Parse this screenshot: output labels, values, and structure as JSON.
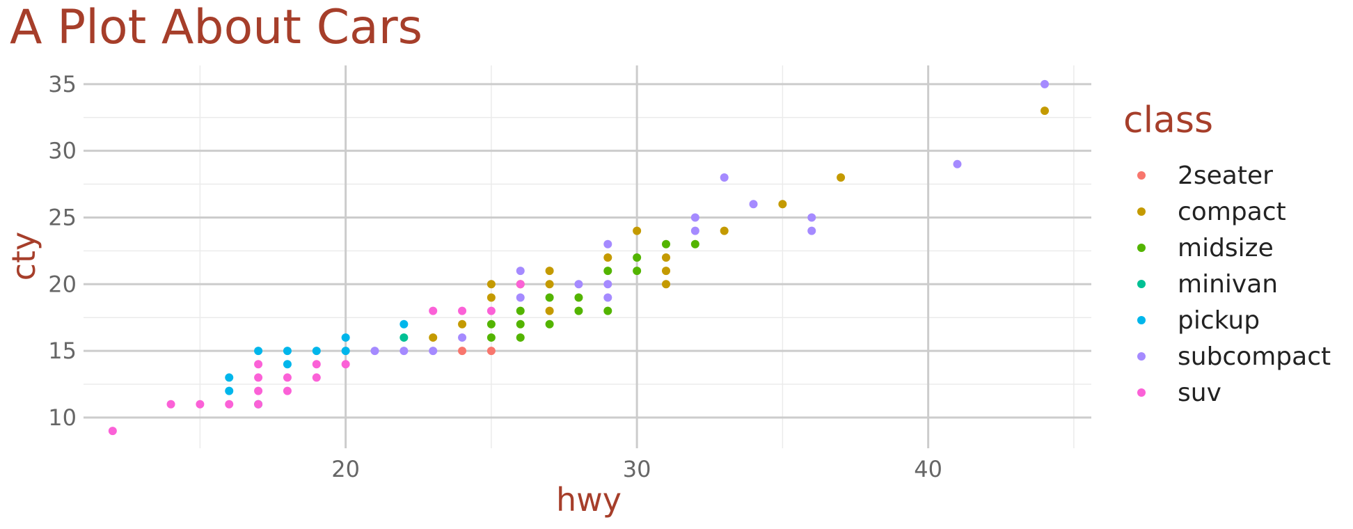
{
  "chart_data": {
    "type": "scatter",
    "title": "A Plot About Cars",
    "xlabel": "hwy",
    "ylabel": "cty",
    "xlim": [
      11.0,
      45.6
    ],
    "ylim": [
      7.7,
      36.4
    ],
    "xticks": [
      20,
      30,
      40
    ],
    "yticks": [
      10,
      15,
      20,
      25,
      30,
      35
    ],
    "grid": true,
    "legend": {
      "title": "class",
      "position": "right"
    },
    "series": [
      {
        "name": "2seater",
        "color": "#F8766D",
        "points": [
          [
            24,
            15
          ],
          [
            25,
            15
          ]
        ]
      },
      {
        "name": "compact",
        "color": "#C49A00",
        "points": [
          [
            23,
            16
          ],
          [
            24,
            17
          ],
          [
            25,
            19
          ],
          [
            25,
            20
          ],
          [
            26,
            20
          ],
          [
            27,
            18
          ],
          [
            27,
            20
          ],
          [
            27,
            21
          ],
          [
            29,
            22
          ],
          [
            30,
            24
          ],
          [
            31,
            20
          ],
          [
            31,
            21
          ],
          [
            31,
            22
          ],
          [
            33,
            24
          ],
          [
            35,
            26
          ],
          [
            37,
            28
          ],
          [
            44,
            33
          ]
        ]
      },
      {
        "name": "midsize",
        "color": "#53B400",
        "points": [
          [
            25,
            16
          ],
          [
            25,
            17
          ],
          [
            26,
            16
          ],
          [
            26,
            17
          ],
          [
            26,
            18
          ],
          [
            27,
            17
          ],
          [
            27,
            19
          ],
          [
            28,
            18
          ],
          [
            28,
            19
          ],
          [
            29,
            18
          ],
          [
            29,
            21
          ],
          [
            30,
            21
          ],
          [
            30,
            22
          ],
          [
            31,
            23
          ],
          [
            32,
            23
          ]
        ]
      },
      {
        "name": "minivan",
        "color": "#00C094",
        "points": [
          [
            22,
            16
          ],
          [
            17,
            11
          ]
        ]
      },
      {
        "name": "pickup",
        "color": "#00B6EB",
        "points": [
          [
            16,
            12
          ],
          [
            16,
            13
          ],
          [
            17,
            15
          ],
          [
            18,
            14
          ],
          [
            18,
            15
          ],
          [
            19,
            15
          ],
          [
            20,
            15
          ],
          [
            20,
            16
          ],
          [
            22,
            17
          ]
        ]
      },
      {
        "name": "subcompact",
        "color": "#A58AFF",
        "points": [
          [
            21,
            15
          ],
          [
            22,
            15
          ],
          [
            23,
            15
          ],
          [
            24,
            16
          ],
          [
            26,
            19
          ],
          [
            26,
            21
          ],
          [
            28,
            20
          ],
          [
            29,
            19
          ],
          [
            29,
            20
          ],
          [
            29,
            23
          ],
          [
            32,
            24
          ],
          [
            32,
            25
          ],
          [
            33,
            28
          ],
          [
            34,
            26
          ],
          [
            36,
            24
          ],
          [
            36,
            25
          ],
          [
            41,
            29
          ],
          [
            44,
            35
          ]
        ]
      },
      {
        "name": "suv",
        "color": "#FB61D7",
        "points": [
          [
            12,
            9
          ],
          [
            14,
            11
          ],
          [
            15,
            11
          ],
          [
            16,
            11
          ],
          [
            17,
            11
          ],
          [
            17,
            12
          ],
          [
            17,
            13
          ],
          [
            17,
            14
          ],
          [
            18,
            12
          ],
          [
            18,
            13
          ],
          [
            19,
            13
          ],
          [
            19,
            14
          ],
          [
            20,
            14
          ],
          [
            23,
            18
          ],
          [
            24,
            18
          ],
          [
            25,
            18
          ],
          [
            26,
            20
          ]
        ]
      }
    ]
  }
}
